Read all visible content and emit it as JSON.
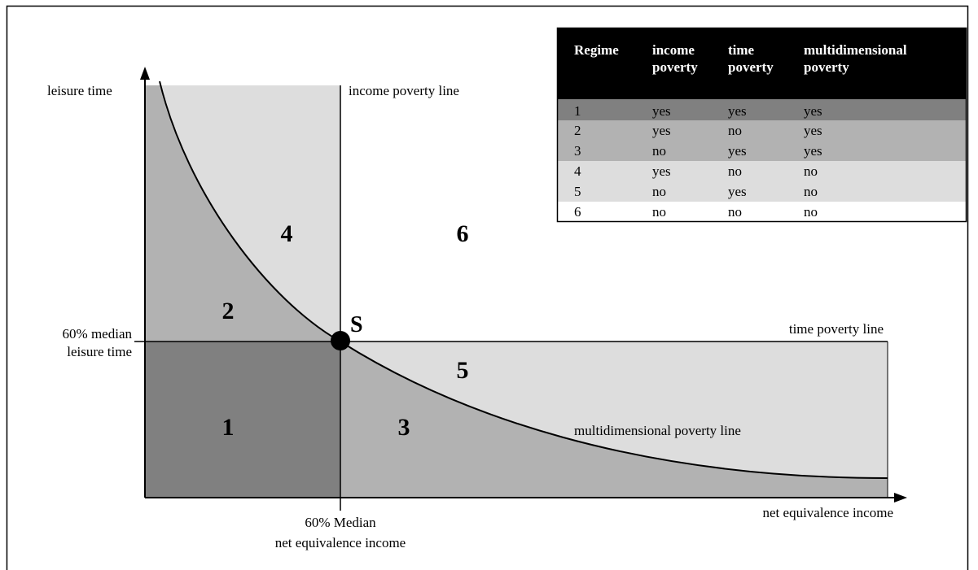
{
  "diagram": {
    "axes": {
      "y_label": "leisure time",
      "x_label": "net equivalence income",
      "y_tick": [
        "60% median",
        "leisure time"
      ],
      "x_tick": [
        "60% Median",
        "net equivalence income"
      ]
    },
    "lines": {
      "income_poverty": "income poverty line",
      "time_poverty": "time poverty line",
      "multidimensional": "multidimensional poverty line"
    },
    "point_label": "S",
    "regions": [
      {
        "id": "1",
        "label": "1"
      },
      {
        "id": "2",
        "label": "2"
      },
      {
        "id": "3",
        "label": "3"
      },
      {
        "id": "4",
        "label": "4"
      },
      {
        "id": "5",
        "label": "5"
      },
      {
        "id": "6",
        "label": "6"
      }
    ],
    "colors": {
      "regime_1": "#808080",
      "regime_2_3": "#b2b2b2",
      "regime_4_5": "#dddddd",
      "regime_6": "#ffffff",
      "header": "#000000"
    }
  },
  "table": {
    "headers": [
      [
        "Regime"
      ],
      [
        "income",
        "poverty"
      ],
      [
        "time",
        "poverty"
      ],
      [
        "multidimensional",
        "poverty"
      ]
    ],
    "rows": [
      [
        "1",
        "yes",
        "yes",
        "yes"
      ],
      [
        "2",
        "yes",
        "no",
        "yes"
      ],
      [
        "3",
        "no",
        "yes",
        "yes"
      ],
      [
        "4",
        "yes",
        "no",
        "no"
      ],
      [
        "5",
        "no",
        "yes",
        "no"
      ],
      [
        "6",
        "no",
        "no",
        "no"
      ]
    ]
  }
}
